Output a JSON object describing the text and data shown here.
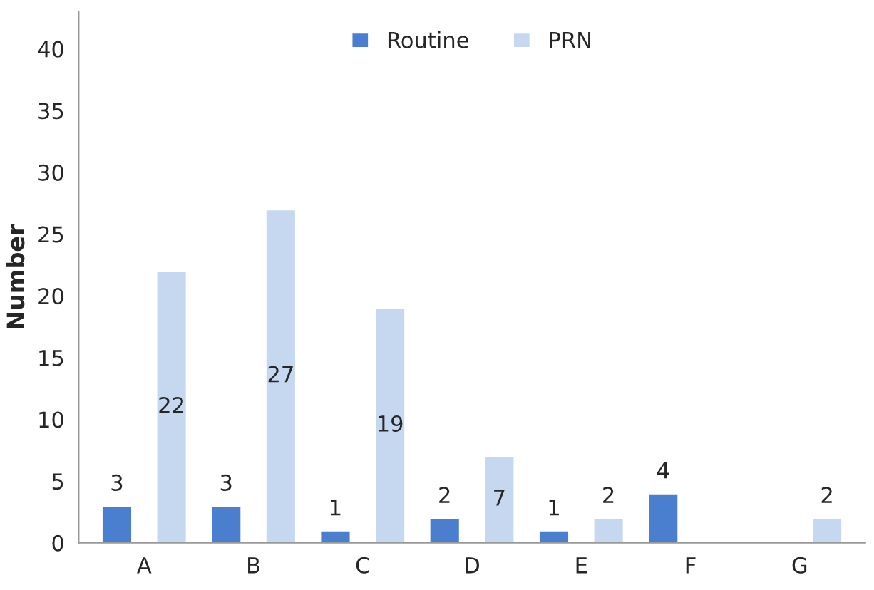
{
  "chart_data": {
    "type": "bar",
    "ylabel": "Number",
    "categories": [
      "A",
      "B",
      "C",
      "D",
      "E",
      "F",
      "G"
    ],
    "series": [
      {
        "name": "Routine",
        "color": "#4a7fd0",
        "values": [
          3,
          3,
          1,
          2,
          1,
          4,
          null
        ]
      },
      {
        "name": "PRN",
        "color": "#c6d8f0",
        "values": [
          22,
          27,
          19,
          7,
          2,
          null,
          2
        ]
      }
    ],
    "ylim": [
      0,
      43
    ],
    "yticks": [
      0,
      5,
      10,
      15,
      20,
      25,
      30,
      35,
      40
    ],
    "data_labels": true,
    "grid": false,
    "legend": "top"
  }
}
